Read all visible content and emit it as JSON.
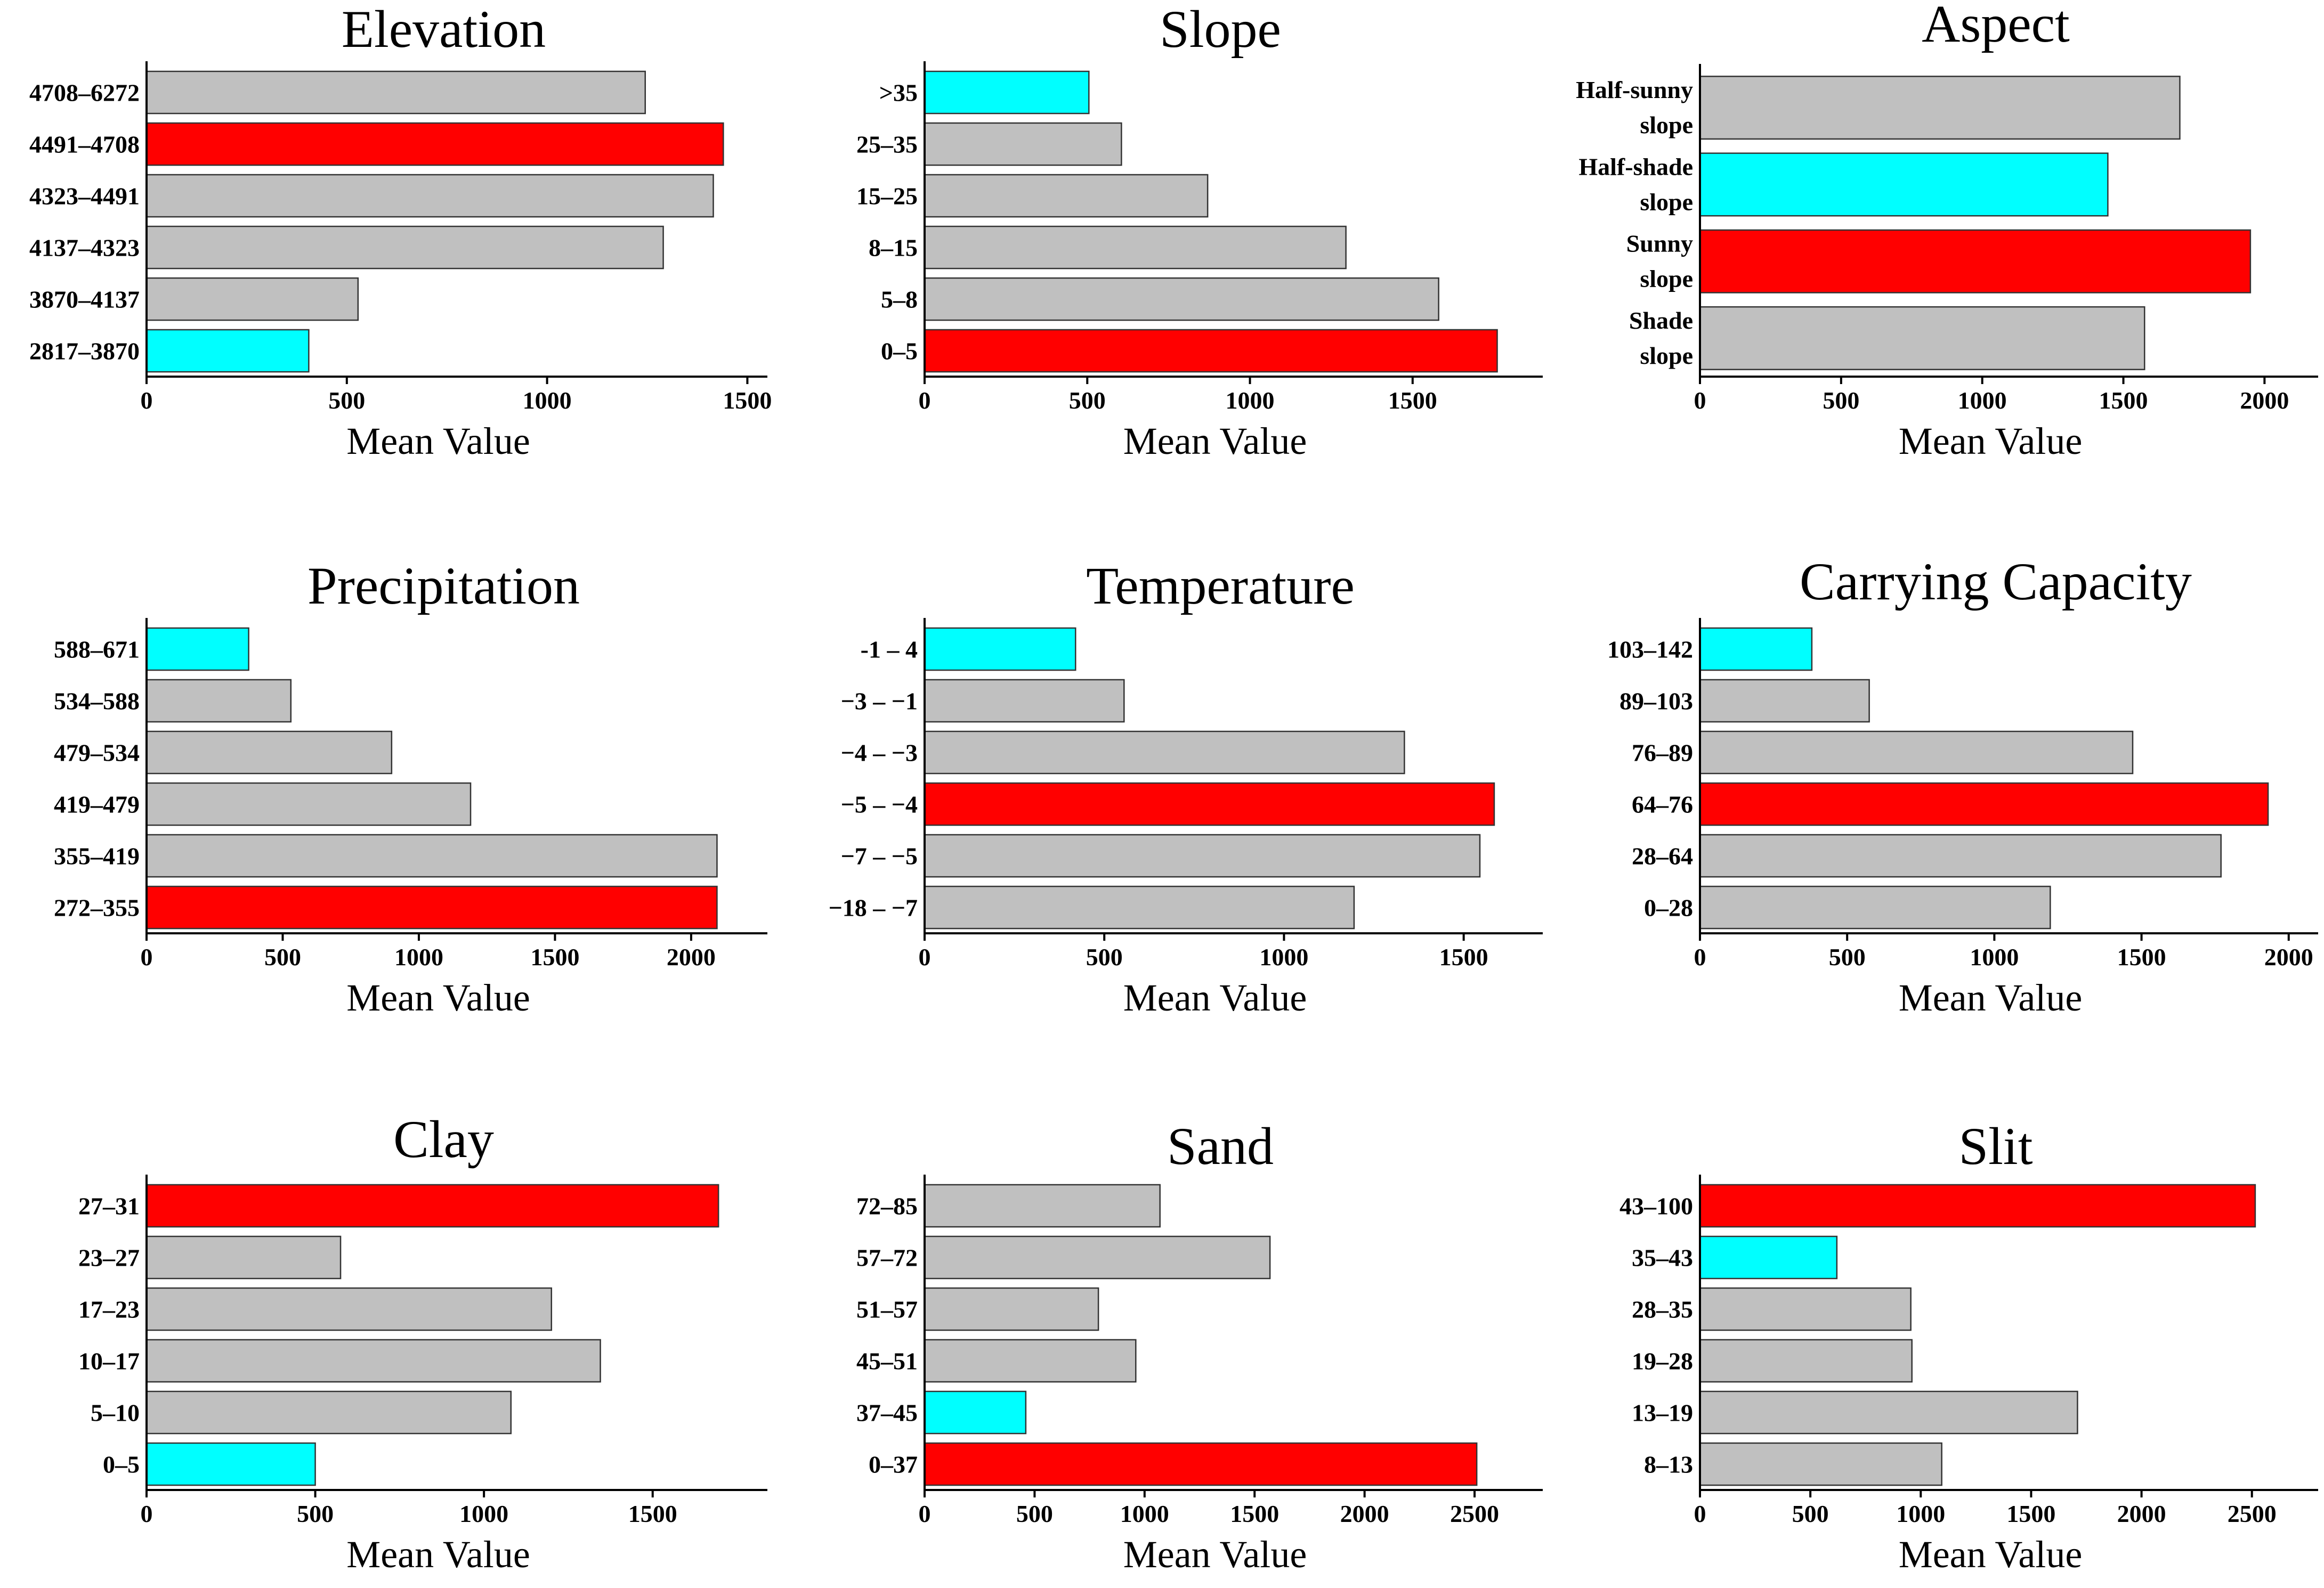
{
  "colors": {
    "gray": "#c0c0c0",
    "red": "#ff0000",
    "cyan": "#00ffff"
  },
  "chart_data": [
    {
      "type": "bar",
      "orientation": "horizontal",
      "title": "Elevation",
      "xlabel": "Mean Value",
      "xlim": [
        0,
        1550
      ],
      "ticks": [
        0,
        500,
        1000,
        1500
      ],
      "categories": [
        "4708–6272",
        "4491–4708",
        "4323–4491",
        "4137–4323",
        "3870–4137",
        "2817–3870"
      ],
      "values": [
        1245,
        1440,
        1415,
        1290,
        528,
        405
      ],
      "colors": [
        "gray",
        "red",
        "gray",
        "gray",
        "gray",
        "cyan"
      ]
    },
    {
      "type": "bar",
      "orientation": "horizontal",
      "title": "Slope",
      "xlabel": "Mean Value",
      "xlim": [
        0,
        1900
      ],
      "ticks": [
        0,
        500,
        1000,
        1500
      ],
      "categories": [
        ">35",
        "25–35",
        "15–25",
        "8–15",
        "5–8",
        "0–5"
      ],
      "values": [
        505,
        605,
        870,
        1295,
        1580,
        1760
      ],
      "colors": [
        "cyan",
        "gray",
        "gray",
        "gray",
        "gray",
        "red"
      ]
    },
    {
      "type": "bar",
      "orientation": "horizontal",
      "title": "Aspect",
      "xlabel": "Mean Value",
      "xlim": [
        0,
        2190
      ],
      "ticks": [
        0,
        500,
        1000,
        1500,
        2000
      ],
      "categories": [
        [
          "Half-sunny",
          "slope"
        ],
        [
          "Half-shade",
          "slope"
        ],
        [
          "Sunny",
          "slope"
        ],
        [
          "Shade",
          "slope"
        ]
      ],
      "values": [
        1700,
        1445,
        1950,
        1575
      ],
      "colors": [
        "gray",
        "cyan",
        "red",
        "gray"
      ]
    },
    {
      "type": "bar",
      "orientation": "horizontal",
      "title": "Precipitation",
      "xlabel": "Mean Value",
      "xlim": [
        0,
        2280
      ],
      "ticks": [
        0,
        500,
        1000,
        1500,
        2000
      ],
      "categories": [
        "588–671",
        "534–588",
        "479–534",
        "419–479",
        "355–419",
        "272–355"
      ],
      "values": [
        375,
        530,
        900,
        1190,
        2095,
        2095
      ],
      "colors": [
        "cyan",
        "gray",
        "gray",
        "gray",
        "gray",
        "red"
      ]
    },
    {
      "type": "bar",
      "orientation": "horizontal",
      "title": "Temperature",
      "xlabel": "Mean Value",
      "xlim": [
        0,
        1720
      ],
      "ticks": [
        0,
        500,
        1000,
        1500
      ],
      "categories": [
        "-1 – 4",
        "−3 – −1",
        "−4 – −3",
        "−5 – −4",
        "−7 – −5",
        "−18 – −7"
      ],
      "values": [
        420,
        555,
        1335,
        1585,
        1545,
        1195
      ],
      "colors": [
        "cyan",
        "gray",
        "gray",
        "red",
        "gray",
        "gray"
      ]
    },
    {
      "type": "bar",
      "orientation": "horizontal",
      "title": "Carrying Capacity",
      "xlabel": "Mean Value",
      "xlim": [
        0,
        2100
      ],
      "ticks": [
        0,
        500,
        1000,
        1500,
        2000
      ],
      "categories": [
        "103–142",
        "89–103",
        "76–89",
        "64–76",
        "28–64",
        "0–28"
      ],
      "values": [
        380,
        575,
        1470,
        1930,
        1770,
        1190
      ],
      "colors": [
        "cyan",
        "gray",
        "gray",
        "red",
        "gray",
        "gray"
      ]
    },
    {
      "type": "bar",
      "orientation": "horizontal",
      "title": "Clay",
      "xlabel": "Mean Value",
      "xlim": [
        0,
        1840
      ],
      "ticks": [
        0,
        500,
        1000,
        1500
      ],
      "categories": [
        "27–31",
        "23–27",
        "17–23",
        "10–17",
        "5–10",
        "0–5"
      ],
      "values": [
        1695,
        575,
        1200,
        1345,
        1080,
        500
      ],
      "colors": [
        "red",
        "gray",
        "gray",
        "gray",
        "gray",
        "cyan"
      ]
    },
    {
      "type": "bar",
      "orientation": "horizontal",
      "title": "Sand",
      "xlabel": "Mean Value",
      "xlim": [
        0,
        2810
      ],
      "ticks": [
        0,
        500,
        1000,
        1500,
        2000,
        2500
      ],
      "categories": [
        "72–85",
        "57–72",
        "51–57",
        "45–51",
        "37–45",
        "0–37"
      ],
      "values": [
        1070,
        1570,
        790,
        960,
        460,
        2510
      ],
      "colors": [
        "gray",
        "gray",
        "gray",
        "gray",
        "cyan",
        "red"
      ]
    },
    {
      "type": "bar",
      "orientation": "horizontal",
      "title": "Slit",
      "xlabel": "Mean Value",
      "xlim": [
        0,
        2800
      ],
      "ticks": [
        0,
        500,
        1000,
        1500,
        2000,
        2500
      ],
      "categories": [
        "43–100",
        "35–43",
        "28–35",
        "19–28",
        "13–19",
        "8–13"
      ],
      "values": [
        2515,
        620,
        955,
        960,
        1710,
        1095
      ],
      "colors": [
        "red",
        "cyan",
        "gray",
        "gray",
        "gray",
        "gray"
      ]
    }
  ]
}
